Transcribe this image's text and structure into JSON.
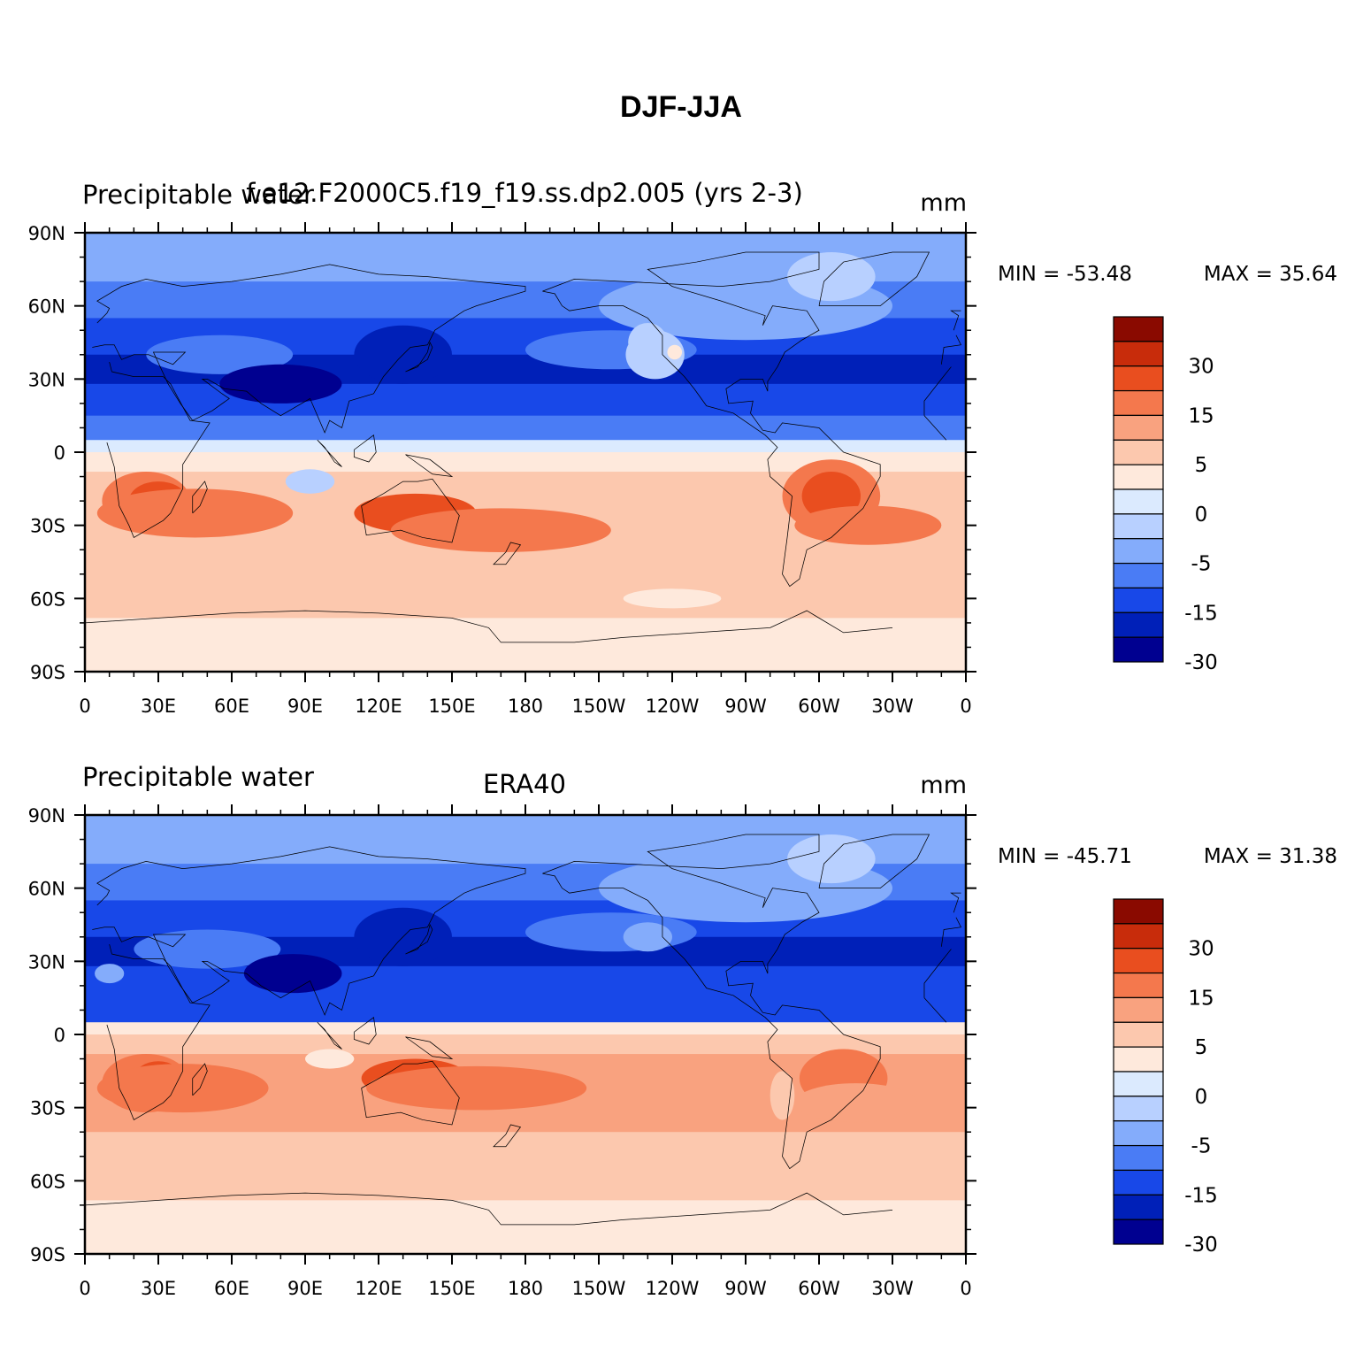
{
  "figure": {
    "title": "DJF-JJA"
  },
  "palette": [
    "#000090",
    "#0020b8",
    "#1848e8",
    "#4a7cf5",
    "#84acfb",
    "#b8d0ff",
    "#dbeafe",
    "#fee9dc",
    "#fcc8ae",
    "#f9a27f",
    "#f4784d",
    "#e94e1f",
    "#c82c0b",
    "#8a0a00"
  ],
  "continent_color": "#000000",
  "axes": {
    "y_ticks": [
      "90N",
      "60N",
      "30N",
      "0",
      "30S",
      "60S",
      "90S"
    ],
    "x_ticks": [
      "0",
      "30E",
      "60E",
      "90E",
      "120E",
      "150E",
      "180",
      "150W",
      "120W",
      "90W",
      "60W",
      "30W",
      "0"
    ]
  },
  "colorbar": {
    "labels": [
      "30",
      "15",
      "5",
      "0",
      "-5",
      "-15",
      "-30"
    ]
  },
  "panels": [
    {
      "left_title": "Precipitable water",
      "center_title": "f.e12.F2000C5.f19_f19.ss.dp2.005 (yrs 2-3)",
      "units": "mm",
      "min_label": "MIN = -53.48",
      "max_label": "MAX =   35.64"
    },
    {
      "left_title": "Precipitable water",
      "center_title": "ERA40",
      "units": "mm",
      "min_label": "MIN = -45.71",
      "max_label": "MAX =   31.38"
    }
  ]
}
